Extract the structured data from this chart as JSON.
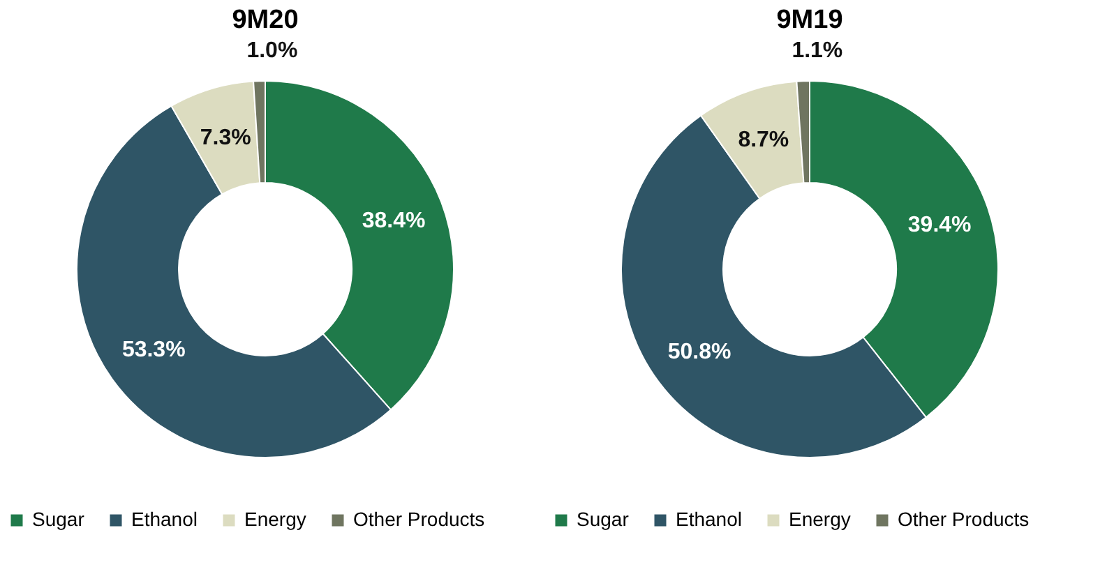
{
  "chart_data": [
    {
      "type": "donut",
      "title": "9M20",
      "categories": [
        "Sugar",
        "Ethanol",
        "Energy",
        "Other Products"
      ],
      "values": [
        38.4,
        53.3,
        7.3,
        1.0
      ],
      "value_labels": [
        "38.4%",
        "53.3%",
        "7.3%",
        "1.0%"
      ],
      "colors": [
        "#1f7a4a",
        "#2f5566",
        "#dcdcc0",
        "#6f7560"
      ],
      "legend": "bottom"
    },
    {
      "type": "donut",
      "title": "9M19",
      "categories": [
        "Sugar",
        "Ethanol",
        "Energy",
        "Other Products"
      ],
      "values": [
        39.4,
        50.8,
        8.7,
        1.1
      ],
      "value_labels": [
        "39.4%",
        "50.8%",
        "8.7%",
        "1.1%"
      ],
      "colors": [
        "#1f7a4a",
        "#2f5566",
        "#dcdcc0",
        "#6f7560"
      ],
      "legend": "bottom"
    }
  ]
}
